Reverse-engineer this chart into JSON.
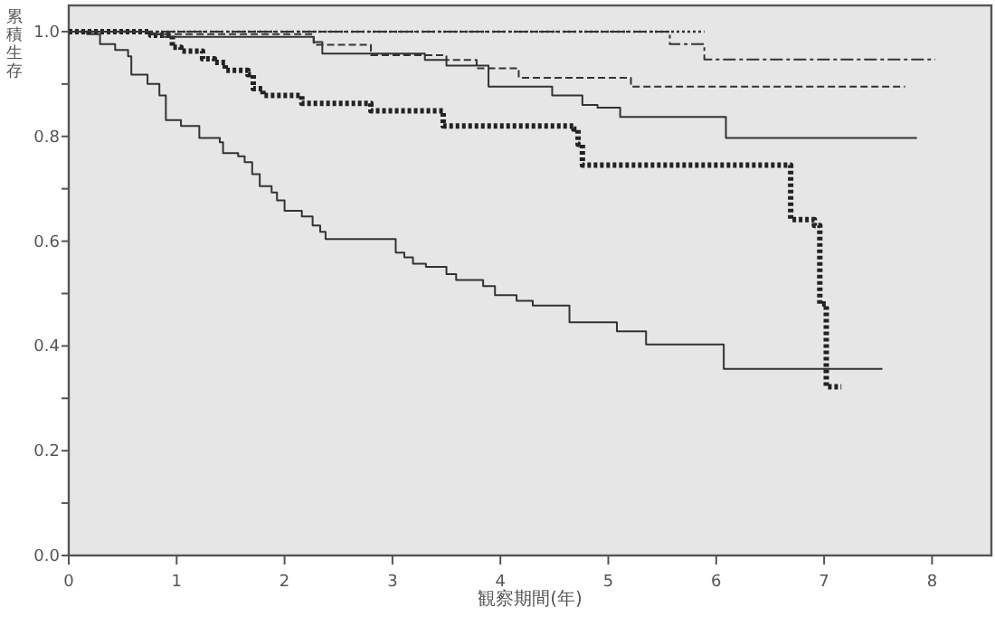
{
  "chart_data": {
    "type": "step",
    "xlabel": "観察期間(年)",
    "ylabel": "累積生存",
    "xlim": [
      0,
      8.55
    ],
    "ylim": [
      0,
      1.05
    ],
    "xticks": [
      0,
      1,
      2,
      3,
      4,
      5,
      6,
      7,
      8
    ],
    "yticks": [
      {
        "value": 0,
        "label": "0.0"
      },
      {
        "value": 0.1,
        "label": null
      },
      {
        "value": 0.2,
        "label": "0.2"
      },
      {
        "value": 0.3,
        "label": null
      },
      {
        "value": 0.4,
        "label": "0.4"
      },
      {
        "value": 0.5,
        "label": null
      },
      {
        "value": 0.6,
        "label": "0.6"
      },
      {
        "value": 0.7,
        "label": null
      },
      {
        "value": 0.8,
        "label": "0.8"
      },
      {
        "value": 0.9,
        "label": null
      },
      {
        "value": 1,
        "label": "1.0"
      }
    ],
    "grid": false,
    "series": [
      {
        "color": "#333333",
        "line_style": "solid",
        "x": [
          0,
          0.17,
          0.29,
          0.43,
          0.55,
          0.58,
          0.73,
          0.84,
          0.9,
          1.04,
          1.21,
          1.4,
          1.43,
          1.57,
          1.63,
          1.7,
          1.77,
          1.88,
          1.93,
          2.0,
          2.16,
          2.26,
          2.33,
          2.38,
          3.03,
          3.11,
          3.19,
          3.31,
          3.5,
          3.59,
          3.84,
          3.95,
          4.15,
          4.3,
          4.64,
          5.08,
          5.35,
          6.07,
          7.54
        ],
        "values": [
          1,
          0.995,
          0.976,
          0.965,
          0.953,
          0.918,
          0.9,
          0.878,
          0.831,
          0.82,
          0.797,
          0.789,
          0.768,
          0.762,
          0.751,
          0.728,
          0.705,
          0.693,
          0.678,
          0.658,
          0.647,
          0.63,
          0.618,
          0.604,
          0.578,
          0.569,
          0.557,
          0.551,
          0.537,
          0.526,
          0.514,
          0.497,
          0.486,
          0.477,
          0.445,
          0.428,
          0.403,
          0.356,
          0.356
        ]
      },
      {
        "color": "#222222",
        "line_style": "dotted",
        "x": [
          0,
          0.76,
          0.96,
          1.04,
          1.24,
          1.35,
          1.45,
          1.66,
          1.71,
          1.8,
          2.16,
          2.8,
          3.47,
          4.68,
          4.72,
          4.76,
          6.69,
          6.91,
          6.96,
          7.02,
          7.16
        ],
        "values": [
          1,
          0.993,
          0.97,
          0.963,
          0.948,
          0.941,
          0.926,
          0.918,
          0.891,
          0.878,
          0.863,
          0.849,
          0.82,
          0.814,
          0.785,
          0.745,
          0.641,
          0.63,
          0.48,
          0.322,
          0.322
        ]
      },
      {
        "color": "#333333",
        "line_style": "dashed",
        "x": [
          0,
          0.77,
          2.27,
          2.8,
          3.5,
          3.78,
          4.17,
          5.21,
          7.75
        ],
        "values": [
          1,
          0.995,
          0.975,
          0.955,
          0.946,
          0.93,
          0.912,
          0.895,
          0.895
        ]
      },
      {
        "color": "#333333",
        "line_style": "solid",
        "x": [
          0,
          0.76,
          0.87,
          2.27,
          2.35,
          3.3,
          3.5,
          3.89,
          4.48,
          4.76,
          4.9,
          5.11,
          6.09,
          7.86
        ],
        "values": [
          1,
          0.995,
          0.99,
          0.98,
          0.958,
          0.946,
          0.935,
          0.895,
          0.878,
          0.86,
          0.855,
          0.837,
          0.797,
          0.797
        ]
      },
      {
        "color": "#333333",
        "line_style": "dashdot",
        "x": [
          0,
          5.57,
          5.89,
          8.03
        ],
        "values": [
          1,
          0.976,
          0.947,
          0.947
        ]
      },
      {
        "color": "#333333",
        "line_style": "fine_dotted",
        "x": [
          0,
          5.89
        ],
        "values": [
          1,
          1
        ]
      }
    ]
  }
}
